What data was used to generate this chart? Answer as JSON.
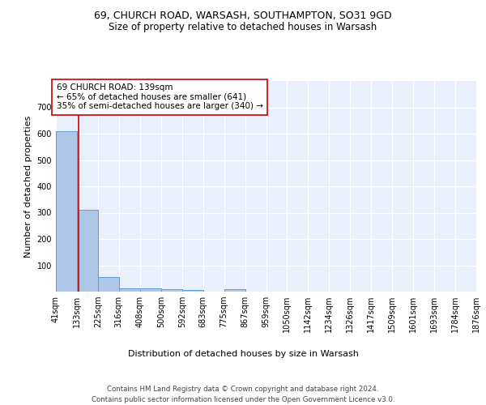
{
  "title1": "69, CHURCH ROAD, WARSASH, SOUTHAMPTON, SO31 9GD",
  "title2": "Size of property relative to detached houses in Warsash",
  "xlabel": "Distribution of detached houses by size in Warsash",
  "ylabel": "Number of detached properties",
  "bin_edges": [
    41,
    133,
    225,
    316,
    408,
    500,
    592,
    683,
    775,
    867,
    959,
    1050,
    1142,
    1234,
    1326,
    1417,
    1509,
    1601,
    1693,
    1784,
    1876
  ],
  "bar_heights": [
    610,
    310,
    55,
    12,
    12,
    10,
    5,
    0,
    8,
    0,
    0,
    0,
    0,
    0,
    0,
    0,
    0,
    0,
    0,
    0
  ],
  "bar_color": "#aec6e8",
  "bar_edge_color": "#5a9fd4",
  "background_color": "#eaf0fb",
  "grid_color": "#ffffff",
  "property_size": 139,
  "red_line_color": "#cc0000",
  "annotation_text": "69 CHURCH ROAD: 139sqm\n← 65% of detached houses are smaller (641)\n35% of semi-detached houses are larger (340) →",
  "annotation_box_color": "#ffffff",
  "annotation_border_color": "#cc0000",
  "ylim": [
    0,
    800
  ],
  "yticks": [
    100,
    200,
    300,
    400,
    500,
    600,
    700
  ],
  "footnote1": "Contains HM Land Registry data © Crown copyright and database right 2024.",
  "footnote2": "Contains public sector information licensed under the Open Government Licence v3.0.",
  "title1_fontsize": 9,
  "title2_fontsize": 8.5,
  "axis_label_fontsize": 8,
  "tick_fontsize": 7,
  "annotation_fontsize": 7.5
}
